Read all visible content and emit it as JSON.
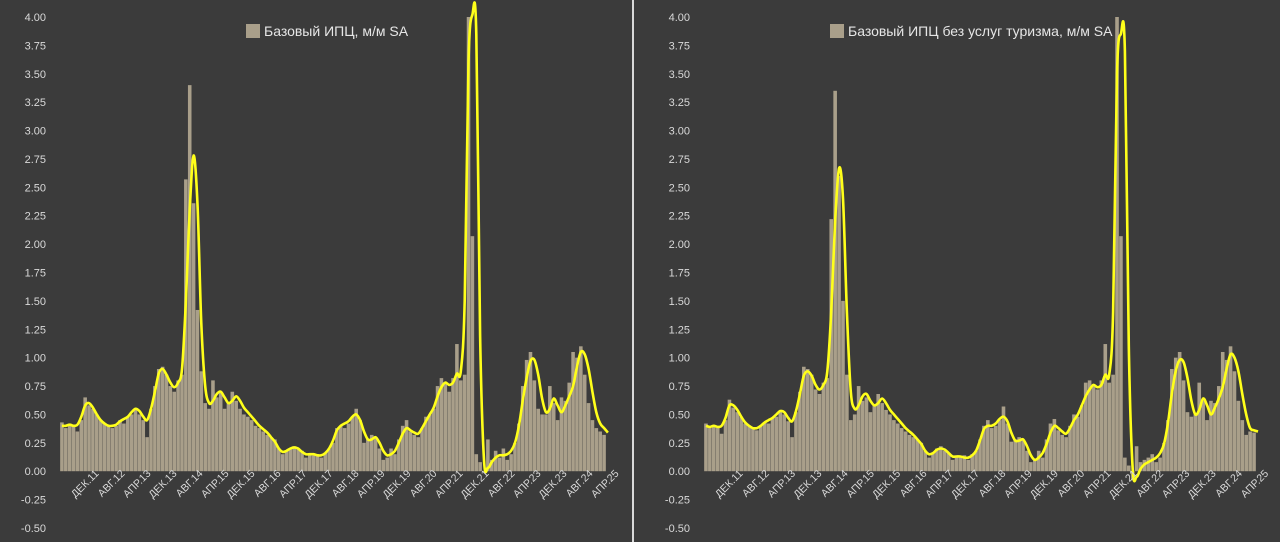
{
  "colors": {
    "background": "#3b3b3b",
    "bar": "#a99f8a",
    "line": "#ffff1a",
    "text": "#d9d9d9",
    "divider": "#d9d9d9"
  },
  "chart_data": [
    {
      "type": "bar",
      "legend": "Базовый ИПЦ, м/м SA",
      "legend_position": "top-center",
      "overlay_line": "smoothed trend (yellow)",
      "ylim": [
        -0.5,
        4.0
      ],
      "yticks": [
        "4.00",
        "3.75",
        "3.50",
        "3.25",
        "3.00",
        "2.75",
        "2.50",
        "2.25",
        "2.00",
        "1.75",
        "1.50",
        "1.25",
        "1.00",
        "0.75",
        "0.50",
        "0.25",
        "0.00",
        "-0.25",
        "-0.50"
      ],
      "xtick_labels": [
        "ДЕК.11",
        "АВГ.12",
        "АПР.13",
        "ДЕК.13",
        "АВГ.14",
        "АПР.15",
        "ДЕК.15",
        "АВГ.16",
        "АПР.17",
        "ДЕК.17",
        "АВГ.18",
        "АПР.19",
        "ДЕК.19",
        "АВГ.20",
        "АПР.21",
        "ДЕК.21",
        "АВГ.22",
        "АПР.23",
        "ДЕК.23",
        "АВГ.24",
        "АПР.25"
      ],
      "grid": false,
      "values": [
        0.43,
        0.38,
        0.42,
        0.4,
        0.35,
        0.45,
        0.65,
        0.58,
        0.55,
        0.5,
        0.45,
        0.42,
        0.4,
        0.38,
        0.4,
        0.45,
        0.42,
        0.48,
        0.5,
        0.55,
        0.5,
        0.45,
        0.3,
        0.55,
        0.75,
        0.9,
        0.92,
        0.85,
        0.75,
        0.7,
        0.8,
        0.85,
        2.57,
        3.4,
        2.36,
        1.42,
        0.88,
        0.6,
        0.55,
        0.8,
        0.65,
        0.7,
        0.55,
        0.6,
        0.7,
        0.62,
        0.55,
        0.5,
        0.48,
        0.45,
        0.4,
        0.38,
        0.35,
        0.32,
        0.3,
        0.28,
        0.2,
        0.15,
        0.18,
        0.2,
        0.22,
        0.2,
        0.18,
        0.12,
        0.15,
        0.14,
        0.15,
        0.12,
        0.16,
        0.2,
        0.25,
        0.38,
        0.4,
        0.38,
        0.42,
        0.48,
        0.55,
        0.45,
        0.25,
        0.28,
        0.32,
        0.3,
        0.2,
        0.1,
        0.12,
        0.2,
        0.15,
        0.28,
        0.4,
        0.45,
        0.35,
        0.32,
        0.3,
        0.38,
        0.48,
        0.5,
        0.55,
        0.75,
        0.82,
        0.78,
        0.7,
        0.82,
        1.12,
        0.8,
        0.85,
        4.0,
        2.07,
        0.15,
        0.08,
        0.0,
        0.28,
        0.1,
        0.18,
        0.12,
        0.2,
        0.1,
        0.15,
        0.25,
        0.42,
        0.75,
        0.98,
        1.05,
        0.8,
        0.55,
        0.5,
        0.5,
        0.75,
        0.6,
        0.45,
        0.65,
        0.62,
        0.78,
        1.05,
        1.0,
        1.1,
        0.85,
        0.6,
        0.45,
        0.38,
        0.35,
        0.32
      ],
      "trend": [
        0.4,
        0.4,
        0.41,
        0.4,
        0.41,
        0.48,
        0.58,
        0.6,
        0.56,
        0.5,
        0.45,
        0.42,
        0.4,
        0.4,
        0.41,
        0.44,
        0.46,
        0.48,
        0.52,
        0.55,
        0.53,
        0.48,
        0.45,
        0.55,
        0.7,
        0.86,
        0.9,
        0.85,
        0.78,
        0.74,
        0.78,
        0.9,
        1.5,
        2.3,
        2.78,
        2.35,
        1.3,
        0.75,
        0.6,
        0.62,
        0.68,
        0.7,
        0.65,
        0.6,
        0.62,
        0.66,
        0.62,
        0.56,
        0.52,
        0.48,
        0.44,
        0.4,
        0.37,
        0.34,
        0.3,
        0.26,
        0.2,
        0.17,
        0.18,
        0.2,
        0.21,
        0.2,
        0.17,
        0.15,
        0.15,
        0.15,
        0.14,
        0.14,
        0.16,
        0.2,
        0.27,
        0.36,
        0.4,
        0.42,
        0.44,
        0.48,
        0.5,
        0.45,
        0.35,
        0.28,
        0.28,
        0.3,
        0.25,
        0.18,
        0.14,
        0.15,
        0.18,
        0.25,
        0.33,
        0.38,
        0.36,
        0.34,
        0.33,
        0.38,
        0.44,
        0.5,
        0.56,
        0.66,
        0.74,
        0.78,
        0.76,
        0.78,
        0.86,
        0.88,
        1.5,
        3.6,
        4.02,
        3.85,
        1.2,
        0.1,
        0.03,
        0.08,
        0.12,
        0.14,
        0.14,
        0.15,
        0.18,
        0.25,
        0.4,
        0.62,
        0.82,
        0.97,
        0.98,
        0.85,
        0.64,
        0.52,
        0.55,
        0.64,
        0.58,
        0.52,
        0.58,
        0.66,
        0.75,
        0.92,
        1.05,
        1.03,
        0.9,
        0.7,
        0.52,
        0.42,
        0.38,
        0.34
      ],
      "trend_spike_order": "rise to 4.02 at AUG.22 region before drop"
    },
    {
      "type": "bar",
      "legend": "Базовый ИПЦ без услуг туризма, м/м SA",
      "legend_position": "top-center",
      "overlay_line": "smoothed trend (yellow)",
      "ylim": [
        -0.5,
        4.0
      ],
      "yticks": [
        "4.00",
        "3.75",
        "3.50",
        "3.25",
        "3.00",
        "2.75",
        "2.50",
        "2.25",
        "2.00",
        "1.75",
        "1.50",
        "1.25",
        "1.00",
        "0.75",
        "0.50",
        "0.25",
        "0.00",
        "-0.25",
        "-0.50"
      ],
      "xtick_labels": [
        "ДЕК.11",
        "АВГ.12",
        "АПР.13",
        "ДЕК.13",
        "АВГ.14",
        "АПР.15",
        "ДЕК.15",
        "АВГ.16",
        "АПР.17",
        "ДЕК.17",
        "АВГ.18",
        "АПР.19",
        "ДЕК.19",
        "АВГ.20",
        "АПР.21",
        "ДЕК.21",
        "АВГ.22",
        "АПР.23",
        "ДЕК.23",
        "АВГ.24",
        "АПР.25"
      ],
      "grid": false,
      "values": [
        0.42,
        0.38,
        0.4,
        0.38,
        0.33,
        0.45,
        0.63,
        0.56,
        0.52,
        0.48,
        0.42,
        0.4,
        0.38,
        0.36,
        0.4,
        0.43,
        0.42,
        0.47,
        0.48,
        0.53,
        0.5,
        0.44,
        0.3,
        0.52,
        0.7,
        0.92,
        0.9,
        0.85,
        0.72,
        0.68,
        0.78,
        0.82,
        2.22,
        3.35,
        2.6,
        1.5,
        0.85,
        0.45,
        0.5,
        0.75,
        0.62,
        0.65,
        0.52,
        0.58,
        0.68,
        0.6,
        0.54,
        0.5,
        0.45,
        0.42,
        0.38,
        0.35,
        0.32,
        0.3,
        0.28,
        0.25,
        0.18,
        0.12,
        0.16,
        0.2,
        0.22,
        0.18,
        0.16,
        0.1,
        0.14,
        0.13,
        0.14,
        0.1,
        0.15,
        0.18,
        0.28,
        0.4,
        0.45,
        0.38,
        0.4,
        0.45,
        0.57,
        0.42,
        0.26,
        0.28,
        0.3,
        0.28,
        0.18,
        0.08,
        0.1,
        0.18,
        0.12,
        0.28,
        0.42,
        0.46,
        0.36,
        0.32,
        0.3,
        0.4,
        0.5,
        0.48,
        0.58,
        0.78,
        0.8,
        0.75,
        0.72,
        0.8,
        1.12,
        0.78,
        0.85,
        4.0,
        2.07,
        0.12,
        0.05,
        -0.08,
        0.22,
        0.08,
        0.1,
        0.12,
        0.15,
        0.08,
        0.12,
        0.25,
        0.45,
        0.9,
        1.0,
        1.05,
        0.8,
        0.52,
        0.48,
        0.5,
        0.78,
        0.62,
        0.45,
        0.62,
        0.6,
        0.75,
        1.05,
        0.98,
        1.1,
        0.88,
        0.62,
        0.45,
        0.32,
        0.35,
        0.34
      ],
      "trend": [
        0.4,
        0.39,
        0.4,
        0.39,
        0.4,
        0.47,
        0.58,
        0.58,
        0.54,
        0.48,
        0.43,
        0.4,
        0.38,
        0.38,
        0.4,
        0.43,
        0.45,
        0.47,
        0.5,
        0.53,
        0.52,
        0.47,
        0.44,
        0.53,
        0.68,
        0.84,
        0.88,
        0.84,
        0.76,
        0.72,
        0.76,
        0.88,
        1.4,
        2.2,
        2.67,
        2.4,
        1.4,
        0.7,
        0.55,
        0.58,
        0.66,
        0.68,
        0.62,
        0.58,
        0.6,
        0.64,
        0.6,
        0.54,
        0.5,
        0.46,
        0.42,
        0.38,
        0.35,
        0.32,
        0.28,
        0.24,
        0.18,
        0.15,
        0.16,
        0.19,
        0.2,
        0.19,
        0.16,
        0.13,
        0.13,
        0.13,
        0.12,
        0.12,
        0.14,
        0.18,
        0.27,
        0.37,
        0.4,
        0.4,
        0.42,
        0.46,
        0.48,
        0.44,
        0.34,
        0.27,
        0.27,
        0.28,
        0.22,
        0.14,
        0.1,
        0.12,
        0.16,
        0.24,
        0.34,
        0.4,
        0.38,
        0.35,
        0.33,
        0.38,
        0.45,
        0.5,
        0.58,
        0.66,
        0.72,
        0.76,
        0.74,
        0.76,
        0.85,
        0.85,
        1.4,
        3.5,
        3.85,
        3.7,
        1.1,
        0.02,
        -0.05,
        0.02,
        0.06,
        0.08,
        0.1,
        0.12,
        0.16,
        0.24,
        0.42,
        0.68,
        0.88,
        0.98,
        0.96,
        0.82,
        0.62,
        0.5,
        0.54,
        0.64,
        0.58,
        0.5,
        0.56,
        0.64,
        0.74,
        0.9,
        1.03,
        1.0,
        0.88,
        0.68,
        0.5,
        0.38,
        0.36,
        0.35
      ]
    }
  ]
}
